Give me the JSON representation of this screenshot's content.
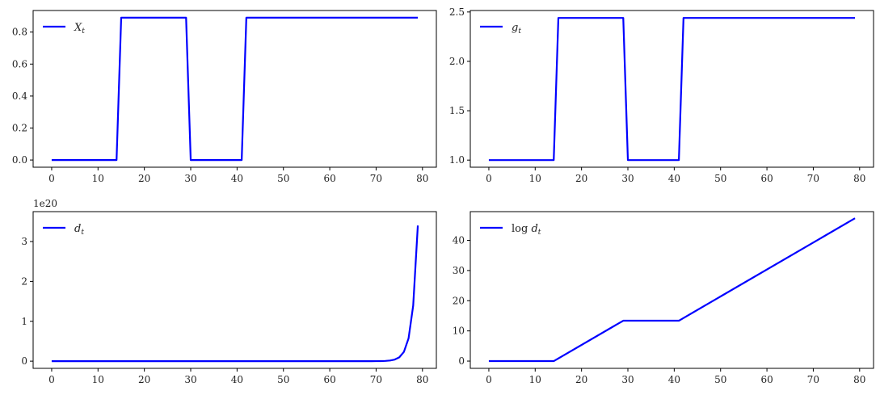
{
  "chart_data": [
    {
      "type": "line",
      "legend": "X_t",
      "legend_display": {
        "main": "X",
        "sub": "t"
      },
      "legend_position": "top-left",
      "color": "#0000ff",
      "xlim": [
        -4,
        83
      ],
      "ylim": [
        -0.045,
        0.935
      ],
      "xticks": [
        0,
        10,
        20,
        30,
        40,
        50,
        60,
        70,
        80
      ],
      "yticks": [
        0.0,
        0.2,
        0.4,
        0.6,
        0.8
      ],
      "yticklabels": [
        "0.0",
        "0.2",
        "0.4",
        "0.6",
        "0.8"
      ],
      "segments": [
        {
          "x_start": 0,
          "x_end": 14,
          "value": 0.0
        },
        {
          "x_start": 15,
          "x_end": 29,
          "value": 0.89
        },
        {
          "x_start": 30,
          "x_end": 41,
          "value": 0.0
        },
        {
          "x_start": 42,
          "x_end": 79,
          "value": 0.89
        }
      ]
    },
    {
      "type": "line",
      "legend": "g_t",
      "legend_display": {
        "main": "g",
        "sub": "t"
      },
      "legend_position": "top-left",
      "color": "#0000ff",
      "xlim": [
        -4,
        83
      ],
      "ylim": [
        0.928,
        2.515
      ],
      "xticks": [
        0,
        10,
        20,
        30,
        40,
        50,
        60,
        70,
        80
      ],
      "yticks": [
        1.0,
        1.5,
        2.0,
        2.5
      ],
      "yticklabels": [
        "1.0",
        "1.5",
        "2.0",
        "2.5"
      ],
      "segments": [
        {
          "x_start": 0,
          "x_end": 14,
          "value": 1.0
        },
        {
          "x_start": 15,
          "x_end": 29,
          "value": 2.44
        },
        {
          "x_start": 30,
          "x_end": 41,
          "value": 1.0
        },
        {
          "x_start": 42,
          "x_end": 79,
          "value": 2.44
        }
      ]
    },
    {
      "type": "line",
      "legend": "d_t",
      "legend_display": {
        "main": "d",
        "sub": "t"
      },
      "legend_position": "top-left",
      "color": "#0000ff",
      "offset_label": "1e20",
      "xlim": [
        -4,
        83
      ],
      "ylim": [
        -0.18,
        3.75
      ],
      "xticks": [
        0,
        10,
        20,
        30,
        40,
        50,
        60,
        70,
        80
      ],
      "yticks": [
        0,
        1,
        2,
        3
      ],
      "yticklabels": [
        "0",
        "1",
        "2",
        "3"
      ],
      "log_series": {
        "x_start": 0,
        "x_end": 79,
        "segments": [
          {
            "x_start": 0,
            "x_end": 14,
            "slope": 0.0
          },
          {
            "x_start": 14,
            "x_end": 29,
            "slope": 0.892
          },
          {
            "x_start": 29,
            "x_end": 41,
            "slope": 0.0
          },
          {
            "x_start": 41,
            "x_end": 79,
            "slope": 0.892
          }
        ],
        "scale_exponent": 20
      }
    },
    {
      "type": "line",
      "legend": "log d_t",
      "legend_display": {
        "prefix": "log ",
        "main": "d",
        "sub": "t"
      },
      "legend_position": "top-left",
      "color": "#0000ff",
      "xlim": [
        -4,
        83
      ],
      "ylim": [
        -2.4,
        49.5
      ],
      "xticks": [
        0,
        10,
        20,
        30,
        40,
        50,
        60,
        70,
        80
      ],
      "yticks": [
        0,
        10,
        20,
        30,
        40
      ],
      "yticklabels": [
        "0",
        "10",
        "20",
        "30",
        "40"
      ],
      "points": [
        [
          0,
          0.0
        ],
        [
          14,
          0.0
        ],
        [
          29,
          13.38
        ],
        [
          41,
          13.38
        ],
        [
          79,
          47.3
        ]
      ]
    }
  ]
}
